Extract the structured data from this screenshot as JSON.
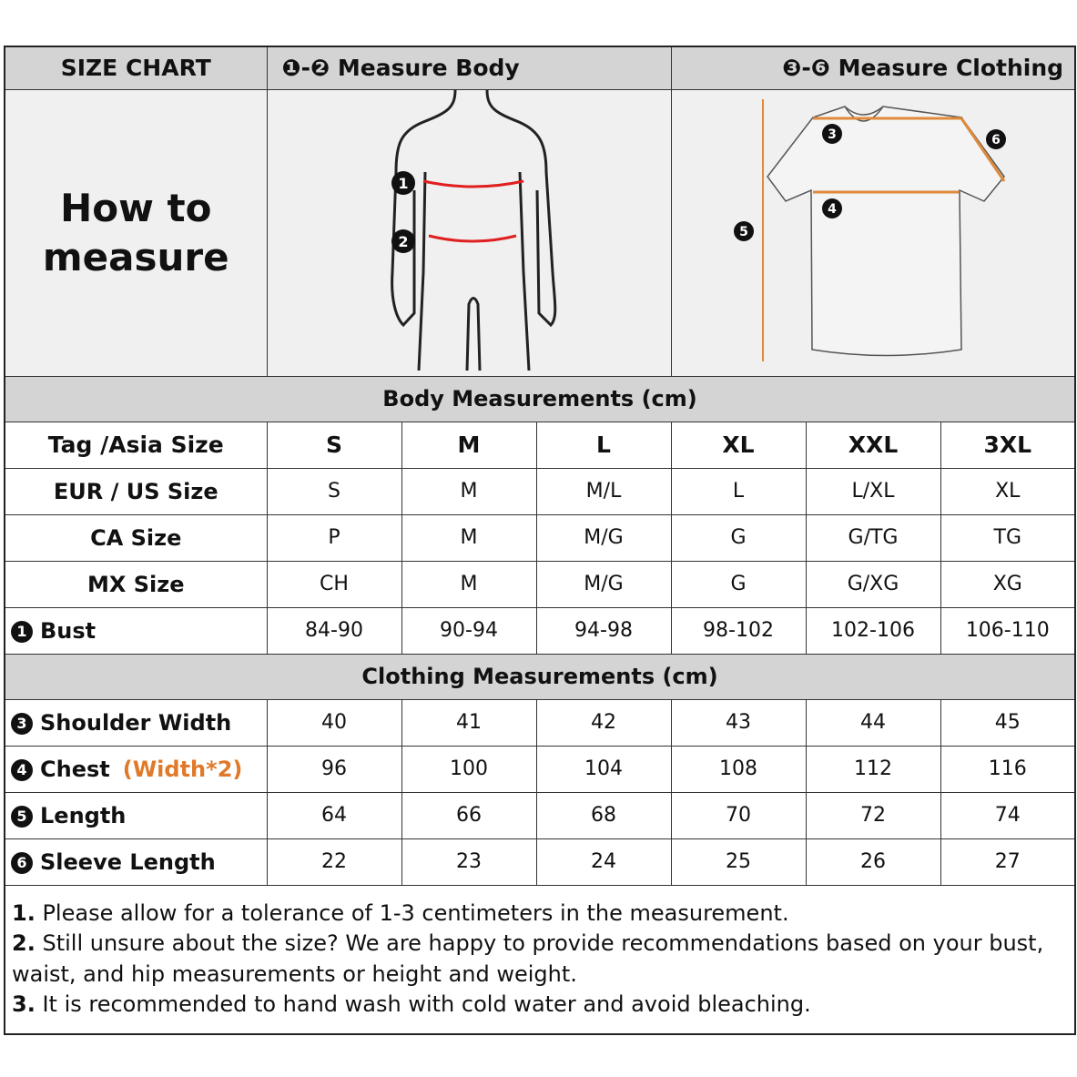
{
  "header": {
    "title": "SIZE CHART",
    "body_label": "❶-❷ Measure Body",
    "clothing_label": "❸-❻ Measure Clothing"
  },
  "how_to": "How to measure",
  "figure_markers": {
    "body": [
      "1",
      "2"
    ],
    "shirt": [
      "3",
      "4",
      "5",
      "6"
    ]
  },
  "colors": {
    "body_line": "#e02020",
    "shirt_line": "#e08a3a",
    "header_bg": "#d4d4d4",
    "note_accent": "#e07a2a"
  },
  "body_section": {
    "title": "Body Measurements (cm)",
    "rows": [
      {
        "label": "Tag /Asia Size",
        "values": [
          "S",
          "M",
          "L",
          "XL",
          "XXL",
          "3XL"
        ]
      },
      {
        "label": "EUR / US Size",
        "values": [
          "S",
          "M",
          "M/L",
          "L",
          "L/XL",
          "XL"
        ]
      },
      {
        "label": "CA Size",
        "values": [
          "P",
          "M",
          "M/G",
          "G",
          "G/TG",
          "TG"
        ]
      },
      {
        "label": "MX Size",
        "values": [
          "CH",
          "M",
          "M/G",
          "G",
          "G/XG",
          "XG"
        ]
      },
      {
        "num": "1",
        "label": "Bust",
        "values": [
          "84-90",
          "90-94",
          "94-98",
          "98-102",
          "102-106",
          "106-110"
        ]
      }
    ]
  },
  "clothing_section": {
    "title": "Clothing Measurements  (cm)",
    "rows": [
      {
        "num": "3",
        "label": "Shoulder Width",
        "values": [
          "40",
          "41",
          "42",
          "43",
          "44",
          "45"
        ]
      },
      {
        "num": "4",
        "label": "Chest",
        "note": "(Width*2)",
        "values": [
          "96",
          "100",
          "104",
          "108",
          "112",
          "116"
        ]
      },
      {
        "num": "5",
        "label": "Length",
        "values": [
          "64",
          "66",
          "68",
          "70",
          "72",
          "74"
        ]
      },
      {
        "num": "6",
        "label": "Sleeve Length",
        "values": [
          "22",
          "23",
          "24",
          "25",
          "26",
          "27"
        ]
      }
    ]
  },
  "notes": [
    {
      "n": "1.",
      "text": " Please allow for a tolerance of 1-3 centimeters in the measurement."
    },
    {
      "n": "2.",
      "text": " Still unsure about the size? We are happy to provide recommendations based on your bust, waist, and hip measurements or height and weight."
    },
    {
      "n": "3.",
      "text": " It is recommended to hand wash with cold water and avoid bleaching."
    }
  ]
}
